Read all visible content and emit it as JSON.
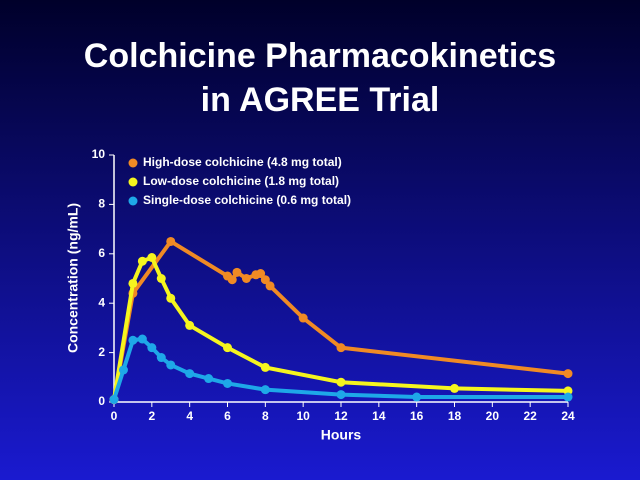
{
  "chart_data": {
    "type": "line",
    "title": "Colchicine Pharmacokinetics",
    "subtitle": "in AGREE Trial",
    "x_label": "Hours",
    "y_label": "Concentration (ng/mL)",
    "xlim": [
      0,
      24
    ],
    "xticks": [
      0,
      2,
      4,
      6,
      8,
      10,
      12,
      14,
      16,
      18,
      20,
      22,
      24
    ],
    "ylim": [
      0,
      10
    ],
    "yticks": [
      0,
      2,
      4,
      6,
      8,
      10
    ],
    "legend": "top-left",
    "series": [
      {
        "name": "High-dose colchicine (4.8 mg total)",
        "color": "#f08a24",
        "x": [
          0,
          1,
          3,
          6,
          6.25,
          6.5,
          7,
          7.5,
          7.75,
          8,
          8.25,
          10,
          12,
          24
        ],
        "values": [
          0.1,
          4.4,
          6.5,
          5.1,
          4.95,
          5.25,
          5.0,
          5.15,
          5.2,
          4.95,
          4.7,
          3.4,
          2.2,
          1.15
        ]
      },
      {
        "name": "Low-dose colchicine (1.8 mg total)",
        "color": "#f5f51e",
        "x": [
          0,
          1,
          1.5,
          2,
          2.5,
          3,
          4,
          6,
          8,
          12,
          18,
          24
        ],
        "values": [
          0.1,
          4.8,
          5.7,
          5.85,
          5.0,
          4.2,
          3.1,
          2.2,
          1.4,
          0.8,
          0.55,
          0.45
        ]
      },
      {
        "name": "Single-dose colchicine (0.6 mg total)",
        "color": "#1ea8e8",
        "x": [
          0,
          0.5,
          1,
          1.5,
          2,
          2.5,
          3,
          4,
          5,
          6,
          8,
          12,
          16,
          24
        ],
        "values": [
          0.1,
          1.3,
          2.5,
          2.55,
          2.2,
          1.8,
          1.5,
          1.15,
          0.95,
          0.75,
          0.5,
          0.3,
          0.2,
          0.2
        ]
      }
    ]
  }
}
